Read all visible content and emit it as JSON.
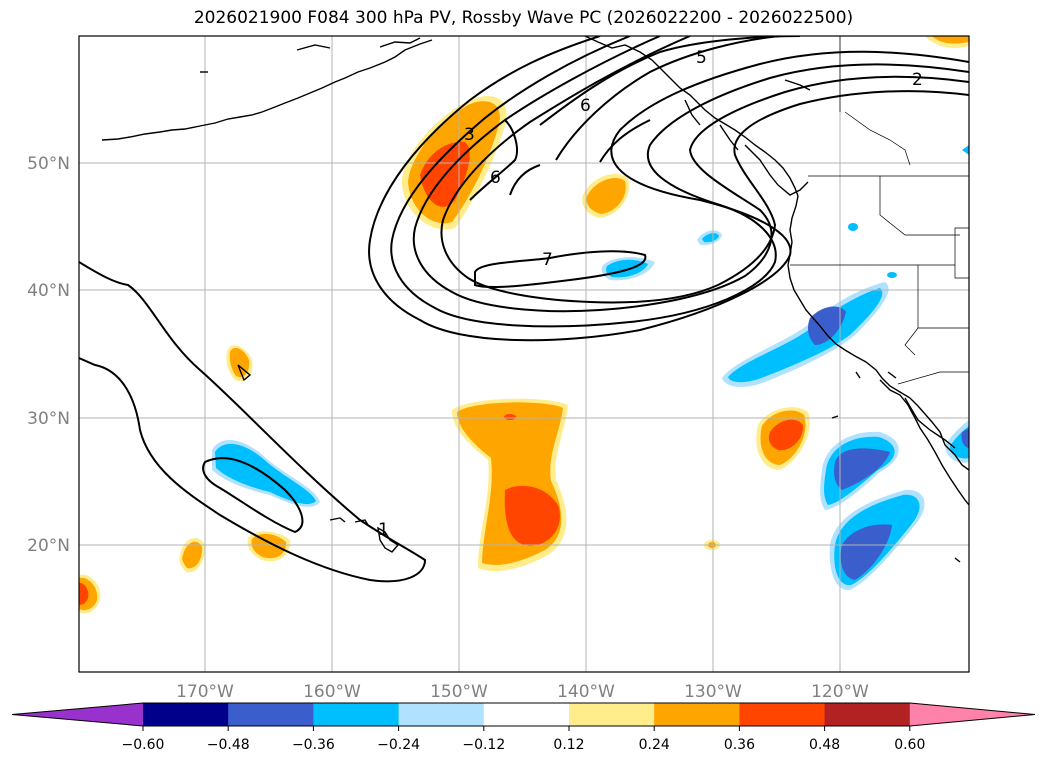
{
  "title": "2026021900 F084 300 hPa PV, Rossby Wave PC (2026022200 - 2026022500)",
  "lat_labels": [
    "50°N",
    "40°N",
    "30°N",
    "20°N"
  ],
  "lon_labels": [
    "170°W",
    "160°W",
    "150°W",
    "140°W",
    "130°W",
    "120°W"
  ],
  "contour_labels": [
    "3",
    "6",
    "6",
    "5",
    "2",
    "7",
    "1"
  ],
  "colorbar": {
    "ticks": [
      "−0.60",
      "−0.48",
      "−0.36",
      "−0.24",
      "−0.12",
      "0.12",
      "0.24",
      "0.36",
      "0.48",
      "0.60"
    ],
    "colors": [
      "#9932cc",
      "#00008b",
      "#3a5fcd",
      "#00bfff",
      "#b0e2ff",
      "#ffffff",
      "#ffec8b",
      "#ffa500",
      "#ff4500",
      "#b22222",
      "#ff82ab"
    ]
  }
}
